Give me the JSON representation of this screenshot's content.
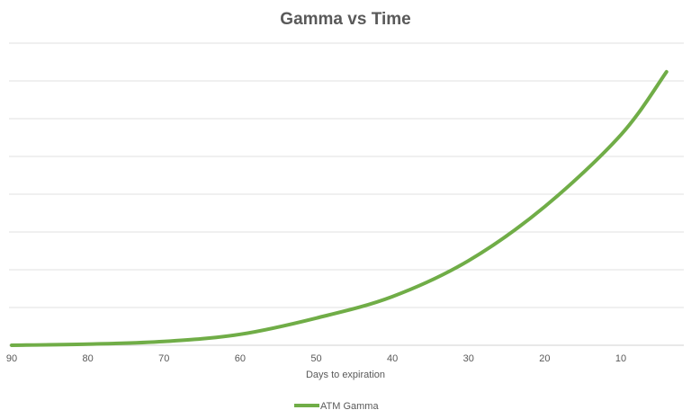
{
  "chart_data": {
    "type": "line",
    "title": "Gamma vs Time",
    "xlabel": "Days to expiration",
    "ylabel": "",
    "x_reversed": true,
    "xlim": [
      90,
      0
    ],
    "ylim": [
      0,
      8
    ],
    "x_ticks": [
      "90",
      "80",
      "70",
      "60",
      "50",
      "40",
      "30",
      "20",
      "10"
    ],
    "y_ticks_shown": false,
    "grid": true,
    "legend": "bottom",
    "series": [
      {
        "name": "ATM Gamma",
        "color": "#70ad47",
        "x": [
          90,
          80,
          70,
          60,
          50,
          40,
          30,
          20,
          10,
          4
        ],
        "y": [
          0,
          0.03,
          0.1,
          0.29,
          0.72,
          1.29,
          2.24,
          3.67,
          5.57,
          7.24
        ]
      }
    ]
  }
}
